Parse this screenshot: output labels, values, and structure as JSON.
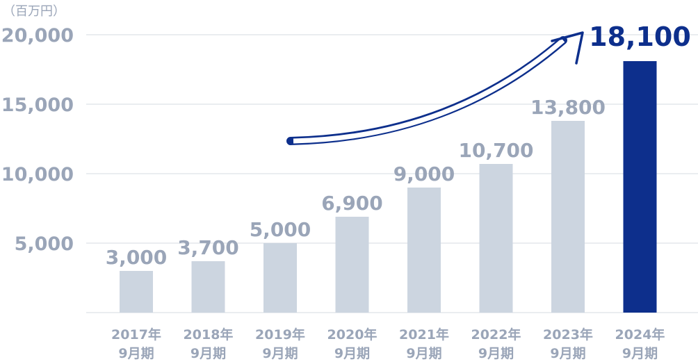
{
  "chart_data": {
    "type": "bar",
    "unit": "（百万円）",
    "categories": [
      [
        "2017年",
        "9月期"
      ],
      [
        "2018年",
        "9月期"
      ],
      [
        "2019年",
        "9月期"
      ],
      [
        "2020年",
        "9月期"
      ],
      [
        "2021年",
        "9月期"
      ],
      [
        "2022年",
        "9月期"
      ],
      [
        "2023年",
        "9月期"
      ],
      [
        "2024年",
        "9月期"
      ]
    ],
    "values": [
      3000,
      3700,
      5000,
      6900,
      9000,
      10700,
      13800,
      18100
    ],
    "value_labels": [
      "3,000",
      "3,700",
      "5,000",
      "6,900",
      "9,000",
      "10,700",
      "13,800",
      "18,100"
    ],
    "ylim": [
      0,
      20000
    ],
    "yticks": [
      5000,
      10000,
      15000,
      20000
    ],
    "ytick_labels": [
      "5,000",
      "10,000",
      "15,000",
      "20,000"
    ],
    "grid": true,
    "highlight_index": 7,
    "colors": {
      "bar": "#ccd5e0",
      "highlight": "#0d2f8c",
      "axis_text": "#9aa5b8",
      "grid": "#e4e7ec",
      "arrow": "#0d2f8c"
    }
  }
}
